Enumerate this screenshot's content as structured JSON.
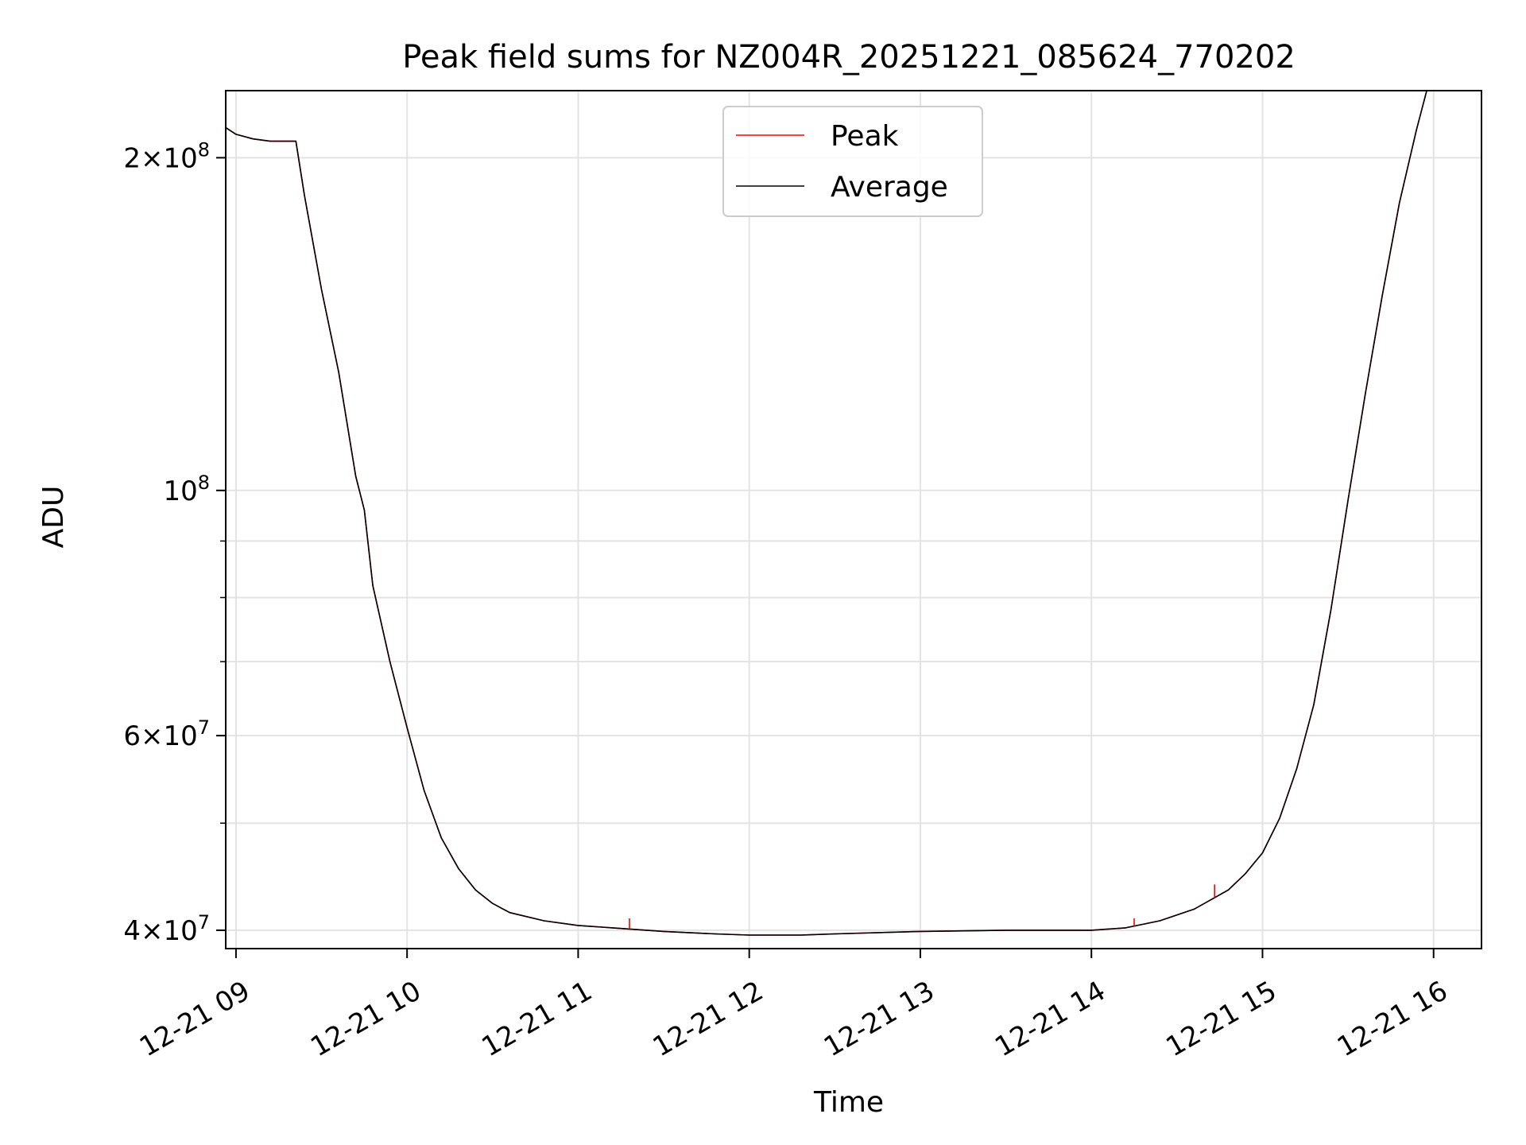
{
  "chart_data": {
    "type": "line",
    "title": "Peak field sums for NZ004R_20251221_085624_770202",
    "xlabel": "Time",
    "ylabel": "ADU",
    "yscale": "log",
    "ylim": [
      38500000,
      230000000
    ],
    "xlim": [
      8.94,
      16.28
    ],
    "grid": true,
    "legend_position": "top-center",
    "x_ticks": [
      {
        "value": 9,
        "label": "12-21 09"
      },
      {
        "value": 10,
        "label": "12-21 10"
      },
      {
        "value": 11,
        "label": "12-21 11"
      },
      {
        "value": 12,
        "label": "12-21 12"
      },
      {
        "value": 13,
        "label": "12-21 13"
      },
      {
        "value": 14,
        "label": "12-21 14"
      },
      {
        "value": 15,
        "label": "12-21 15"
      },
      {
        "value": 16,
        "label": "12-21 16"
      }
    ],
    "y_major_ticks": [
      {
        "value": 40000000,
        "mantissa": "4",
        "exponent": "7"
      },
      {
        "value": 60000000,
        "mantissa": "6",
        "exponent": "7"
      },
      {
        "value": 100000000,
        "mantissa": "",
        "exponent": "8"
      },
      {
        "value": 200000000,
        "mantissa": "2",
        "exponent": "8"
      }
    ],
    "y_minor_ticks": [
      50000000,
      70000000,
      80000000,
      90000000
    ],
    "times_base": "2025-12-21",
    "series": [
      {
        "name": "Peak",
        "color": "#ff0000",
        "x": [
          8.94,
          9.0,
          9.1,
          9.2,
          9.35,
          9.4,
          9.5,
          9.6,
          9.7,
          9.75,
          9.8,
          9.9,
          10.0,
          10.1,
          10.2,
          10.3,
          10.4,
          10.5,
          10.6,
          10.8,
          11.0,
          11.3,
          11.5,
          11.8,
          12.0,
          12.3,
          12.5,
          13.0,
          13.5,
          14.0,
          14.2,
          14.4,
          14.6,
          14.8,
          14.9,
          15.0,
          15.1,
          15.2,
          15.3,
          15.4,
          15.5,
          15.6,
          15.7,
          15.8,
          15.9,
          15.96
        ],
        "y": [
          213000000,
          210000000,
          208000000,
          207000000,
          207000000,
          185000000,
          152000000,
          128000000,
          103000000,
          96000000,
          82000000,
          70000000,
          61000000,
          53500000,
          48500000,
          45500000,
          43500000,
          42300000,
          41500000,
          40800000,
          40400000,
          40100000,
          39900000,
          39700000,
          39600000,
          39600000,
          39700000,
          39900000,
          40000000,
          40000000,
          40200000,
          40800000,
          41800000,
          43500000,
          45000000,
          47000000,
          50500000,
          56000000,
          64000000,
          78000000,
          98000000,
          122000000,
          150000000,
          182000000,
          212000000,
          230000000
        ]
      },
      {
        "name": "Average",
        "color": "#000000",
        "x": [
          8.94,
          9.0,
          9.1,
          9.2,
          9.35,
          9.4,
          9.5,
          9.6,
          9.7,
          9.75,
          9.8,
          9.9,
          10.0,
          10.1,
          10.2,
          10.3,
          10.4,
          10.5,
          10.6,
          10.8,
          11.0,
          11.3,
          11.5,
          11.8,
          12.0,
          12.3,
          12.5,
          13.0,
          13.5,
          14.0,
          14.2,
          14.4,
          14.6,
          14.8,
          14.9,
          15.0,
          15.1,
          15.2,
          15.3,
          15.4,
          15.5,
          15.6,
          15.7,
          15.8,
          15.9,
          15.96
        ],
        "y": [
          213000000,
          210000000,
          208000000,
          207000000,
          207000000,
          185000000,
          152000000,
          128000000,
          103000000,
          96000000,
          82000000,
          70000000,
          61000000,
          53500000,
          48500000,
          45500000,
          43500000,
          42300000,
          41500000,
          40800000,
          40400000,
          40100000,
          39900000,
          39700000,
          39600000,
          39600000,
          39700000,
          39900000,
          40000000,
          40000000,
          40200000,
          40800000,
          41800000,
          43500000,
          45000000,
          47000000,
          50500000,
          56000000,
          64000000,
          78000000,
          98000000,
          122000000,
          150000000,
          182000000,
          212000000,
          230000000
        ]
      }
    ],
    "peak_spikes": [
      {
        "x": 11.3,
        "y": 41000000
      },
      {
        "x": 14.25,
        "y": 41000000
      },
      {
        "x": 14.62,
        "y": 42000000
      },
      {
        "x": 14.72,
        "y": 44000000
      }
    ]
  }
}
